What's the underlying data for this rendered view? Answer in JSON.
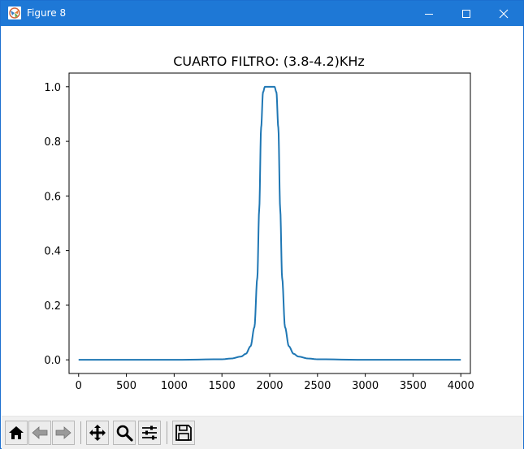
{
  "window": {
    "title": "Figure 8",
    "icon": "matplotlib-figure-icon",
    "controls": {
      "minimize": "minimize-icon",
      "maximize": "maximize-icon",
      "close": "close-icon"
    }
  },
  "toolbar": {
    "buttons": [
      {
        "name": "home-button",
        "icon": "home-icon"
      },
      {
        "name": "back-button",
        "icon": "back-arrow-icon"
      },
      {
        "name": "forward-button",
        "icon": "forward-arrow-icon"
      },
      {
        "name": "pan-button",
        "icon": "move-icon"
      },
      {
        "name": "zoom-button",
        "icon": "zoom-icon"
      },
      {
        "name": "configure-subplots-button",
        "icon": "sliders-icon"
      },
      {
        "name": "save-button",
        "icon": "floppy-disk-icon"
      }
    ]
  },
  "chart_data": {
    "type": "line",
    "title": "CUARTO FILTRO: (3.8-4.2)KHz",
    "xlabel": "",
    "ylabel": "",
    "xlim": [
      -100,
      4100
    ],
    "ylim": [
      -0.05,
      1.05
    ],
    "xticks": [
      "0",
      "500",
      "1000",
      "1500",
      "2000",
      "2500",
      "3000",
      "3500",
      "4000"
    ],
    "xtick_values": [
      0,
      500,
      1000,
      1500,
      2000,
      2500,
      3000,
      3500,
      4000
    ],
    "yticks": [
      "0.0",
      "0.2",
      "0.4",
      "0.6",
      "0.8",
      "1.0"
    ],
    "ytick_values": [
      0.0,
      0.2,
      0.4,
      0.6,
      0.8,
      1.0
    ],
    "grid": false,
    "series": [
      {
        "color": "#1f77b4",
        "x": [
          0,
          1000,
          1500,
          1600,
          1700,
          1750,
          1800,
          1840,
          1870,
          1890,
          1910,
          1930,
          1950,
          2000,
          2050,
          2070,
          2090,
          2110,
          2130,
          2160,
          2200,
          2250,
          2300,
          2400,
          2500,
          3000,
          4000
        ],
        "y": [
          0,
          0,
          0.002,
          0.005,
          0.012,
          0.022,
          0.05,
          0.12,
          0.3,
          0.55,
          0.85,
          0.98,
          1.0,
          1.0,
          1.0,
          0.98,
          0.85,
          0.55,
          0.3,
          0.12,
          0.05,
          0.022,
          0.012,
          0.005,
          0.002,
          0,
          0
        ]
      }
    ]
  }
}
